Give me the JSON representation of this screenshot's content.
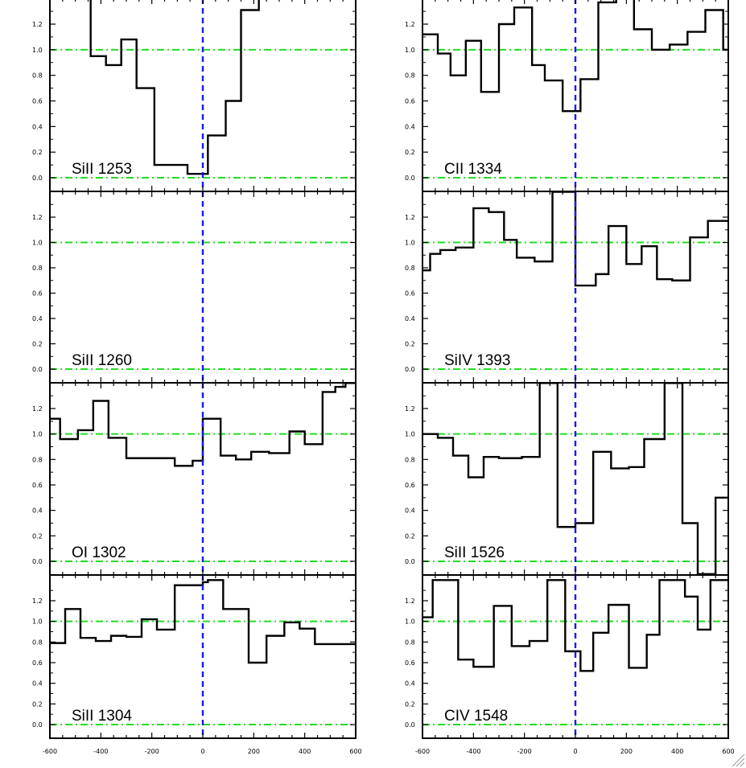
{
  "chart_data": [
    {
      "type": "line",
      "label": "SiII 1253",
      "column": "left",
      "xlim": [
        -600,
        600
      ],
      "ylim": [
        -0.1,
        1.4
      ],
      "y_ticks": [
        "0.0",
        "0.2",
        "0.4",
        "0.6",
        "0.8",
        "1.0",
        "1.2"
      ],
      "reference_lines": {
        "continuum": 1.0,
        "zero": 0.0,
        "velocity_zero": 0
      },
      "series": [
        {
          "edges": [
            -600,
            -500,
            -440,
            -380,
            -320,
            -260,
            -190,
            -130,
            -60,
            0,
            20,
            90,
            150,
            220,
            240
          ],
          "values": [
            1.4,
            1.4,
            0.95,
            0.88,
            1.08,
            0.7,
            0.1,
            0.1,
            0.03,
            0.03,
            0.33,
            0.6,
            1.31,
            1.4
          ]
        }
      ]
    },
    {
      "type": "line",
      "label": "CII 1334",
      "column": "right",
      "xlim": [
        -600,
        600
      ],
      "ylim": [
        -0.1,
        1.4
      ],
      "y_ticks": [
        "0.0",
        "0.2",
        "0.4",
        "0.6",
        "0.8",
        "1.0",
        "1.2"
      ],
      "reference_lines": {
        "continuum": 1.0,
        "zero": 0.0,
        "velocity_zero": 0
      },
      "series": [
        {
          "edges": [
            -600,
            -540,
            -490,
            -430,
            -370,
            -300,
            -240,
            -170,
            -120,
            -50,
            0,
            20,
            90,
            160,
            230,
            300,
            370,
            440,
            510,
            580,
            600
          ],
          "values": [
            1.12,
            0.97,
            0.8,
            1.07,
            0.67,
            1.2,
            1.33,
            0.88,
            0.76,
            0.52,
            0.52,
            0.77,
            1.37,
            1.4,
            1.16,
            1.0,
            1.04,
            1.14,
            1.31,
            1.0
          ]
        }
      ]
    },
    {
      "type": "line",
      "label": "SiII 1260",
      "column": "left",
      "xlim": [
        -600,
        600
      ],
      "ylim": [
        -0.1,
        1.4
      ],
      "y_ticks": [
        "0.0",
        "0.2",
        "0.4",
        "0.6",
        "0.8",
        "1.0",
        "1.2"
      ],
      "reference_lines": {
        "continuum": 1.0,
        "zero": 0.0,
        "velocity_zero": 0
      },
      "series": []
    },
    {
      "type": "line",
      "label": "SiIV 1393",
      "column": "right",
      "xlim": [
        -600,
        600
      ],
      "ylim": [
        -0.1,
        1.4
      ],
      "y_ticks": [
        "0.0",
        "0.2",
        "0.4",
        "0.6",
        "0.8",
        "1.0",
        "1.2"
      ],
      "reference_lines": {
        "continuum": 1.0,
        "zero": 0.0,
        "velocity_zero": 0
      },
      "series": [
        {
          "edges": [
            -600,
            -570,
            -530,
            -470,
            -400,
            -340,
            -280,
            -230,
            -160,
            -90,
            -40,
            0,
            20,
            80,
            130,
            200,
            260,
            320,
            380,
            450,
            520,
            580,
            600
          ],
          "values": [
            0.78,
            0.91,
            0.94,
            0.96,
            1.27,
            1.24,
            1.02,
            0.88,
            0.85,
            1.4,
            1.4,
            0.66,
            0.66,
            0.75,
            1.13,
            0.83,
            0.97,
            0.71,
            0.7,
            1.04,
            1.17,
            1.17
          ]
        }
      ]
    },
    {
      "type": "line",
      "label": "OI 1302",
      "column": "left",
      "xlim": [
        -600,
        600
      ],
      "ylim": [
        -0.1,
        1.4
      ],
      "y_ticks": [
        "0.0",
        "0.2",
        "0.4",
        "0.6",
        "0.8",
        "1.0",
        "1.2"
      ],
      "reference_lines": {
        "continuum": 1.0,
        "zero": 0.0,
        "velocity_zero": 0
      },
      "series": [
        {
          "edges": [
            -600,
            -560,
            -490,
            -430,
            -370,
            -300,
            -250,
            -180,
            -110,
            -40,
            0,
            20,
            70,
            130,
            190,
            260,
            340,
            400,
            470,
            520,
            560,
            600
          ],
          "values": [
            1.12,
            0.96,
            1.03,
            1.26,
            0.97,
            0.81,
            0.81,
            0.81,
            0.75,
            0.79,
            1.12,
            1.12,
            0.83,
            0.8,
            0.86,
            0.85,
            1.02,
            0.92,
            1.33,
            1.37,
            1.4
          ]
        }
      ]
    },
    {
      "type": "line",
      "label": "SiII 1526",
      "column": "right",
      "xlim": [
        -600,
        600
      ],
      "ylim": [
        -0.1,
        1.4
      ],
      "y_ticks": [
        "0.0",
        "0.2",
        "0.4",
        "0.6",
        "0.8",
        "1.0",
        "1.2"
      ],
      "reference_lines": {
        "continuum": 1.0,
        "zero": 0.0,
        "velocity_zero": 0
      },
      "series": [
        {
          "edges": [
            -600,
            -540,
            -480,
            -420,
            -360,
            -300,
            -210,
            -140,
            -70,
            0,
            20,
            70,
            140,
            210,
            270,
            350,
            420,
            480,
            550,
            600
          ],
          "values": [
            1.0,
            0.97,
            0.83,
            0.66,
            0.82,
            0.81,
            0.82,
            1.4,
            0.27,
            0.3,
            0.3,
            0.86,
            0.73,
            0.74,
            0.96,
            1.4,
            0.3,
            -0.1,
            0.5
          ]
        }
      ]
    },
    {
      "type": "line",
      "label": "SiII 1304",
      "column": "left",
      "xlim": [
        -600,
        600
      ],
      "ylim": [
        -0.1,
        1.4
      ],
      "y_ticks": [
        "0.0",
        "0.2",
        "0.4",
        "0.6",
        "0.8",
        "1.0",
        "1.2"
      ],
      "reference_lines": {
        "continuum": 1.0,
        "zero": 0.0,
        "velocity_zero": 0
      },
      "series": [
        {
          "edges": [
            -600,
            -540,
            -480,
            -420,
            -360,
            -300,
            -240,
            -180,
            -110,
            -50,
            0,
            20,
            80,
            180,
            250,
            320,
            380,
            440,
            510,
            580,
            600
          ],
          "values": [
            0.79,
            1.12,
            0.84,
            0.81,
            0.86,
            0.85,
            1.02,
            0.92,
            1.35,
            1.35,
            1.38,
            1.4,
            1.12,
            0.6,
            0.86,
            0.99,
            0.93,
            0.78,
            0.78,
            0.78
          ]
        }
      ]
    },
    {
      "type": "line",
      "label": "CIV 1548",
      "column": "right",
      "xlim": [
        -600,
        600
      ],
      "ylim": [
        -0.1,
        1.4
      ],
      "y_ticks": [
        "0.0",
        "0.2",
        "0.4",
        "0.6",
        "0.8",
        "1.0",
        "1.2"
      ],
      "reference_lines": {
        "continuum": 1.0,
        "zero": 0.0,
        "velocity_zero": 0
      },
      "series": [
        {
          "edges": [
            -600,
            -560,
            -460,
            -400,
            -320,
            -250,
            -180,
            -110,
            -40,
            0,
            20,
            70,
            130,
            210,
            280,
            330,
            370,
            430,
            480,
            530,
            600
          ],
          "values": [
            1.04,
            1.4,
            0.63,
            0.56,
            1.15,
            0.76,
            0.81,
            1.4,
            0.71,
            0.71,
            0.52,
            0.89,
            1.16,
            0.55,
            0.87,
            1.4,
            1.4,
            1.24,
            0.92,
            1.4
          ]
        }
      ]
    }
  ],
  "x_tick_labels": [
    "-600",
    "-400",
    "-200",
    "0",
    "200",
    "400",
    "600"
  ],
  "colors": {
    "axes": "#000000",
    "data": "#000000",
    "continuum": "#22dd22",
    "velocity_zero": "#1a1aee"
  }
}
